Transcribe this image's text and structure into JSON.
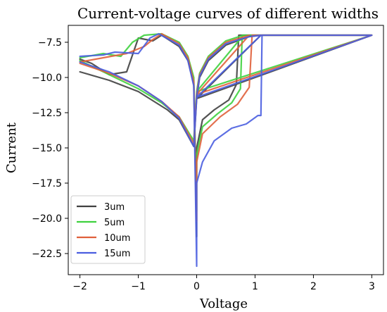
{
  "chart_data": {
    "type": "line",
    "title": "Current-voltage curves of different widths",
    "xlabel": "Voltage",
    "ylabel": "Current",
    "xlim": [
      -2.2,
      3.2
    ],
    "ylim": [
      -24.0,
      -6.3
    ],
    "xticks": [
      -2,
      -1,
      0,
      1,
      2,
      3
    ],
    "xtick_labels": [
      "−2",
      "−1",
      "0",
      "1",
      "2",
      "3"
    ],
    "yticks": [
      -22.5,
      -20.0,
      -17.5,
      -15.0,
      -12.5,
      -10.0,
      -7.5
    ],
    "ytick_labels": [
      "−22.5",
      "−20.0",
      "−17.5",
      "−15.0",
      "−12.5",
      "−10.0",
      "−7.5"
    ],
    "grid": false,
    "legend_position": "lower-left",
    "series": [
      {
        "name": "3um",
        "color": "#404040",
        "points": [
          [
            -2.0,
            -8.7
          ],
          [
            -1.8,
            -9.0
          ],
          [
            -1.5,
            -9.8
          ],
          [
            -1.2,
            -9.6
          ],
          [
            -1.0,
            -7.2
          ],
          [
            -0.75,
            -7.4
          ],
          [
            -0.6,
            -7.0
          ],
          [
            -0.3,
            -7.8
          ],
          [
            -0.15,
            -8.8
          ],
          [
            -0.05,
            -10.5
          ],
          [
            0.0,
            -21.3
          ],
          [
            0.0,
            -15.0
          ],
          [
            0.1,
            -13.0
          ],
          [
            0.3,
            -12.3
          ],
          [
            0.55,
            -11.6
          ],
          [
            0.68,
            -10.5
          ],
          [
            0.72,
            -7.0
          ],
          [
            1.0,
            -7.0
          ],
          [
            2.0,
            -7.0
          ],
          [
            3.0,
            -7.0
          ],
          [
            0.0,
            -11.5
          ],
          [
            0.05,
            -10.0
          ],
          [
            0.2,
            -8.8
          ],
          [
            0.5,
            -7.7
          ],
          [
            0.9,
            -7.1
          ],
          [
            1.1,
            -7.0
          ],
          [
            0.0,
            -11.5
          ],
          [
            -0.05,
            -14.9
          ],
          [
            -0.3,
            -13.0
          ],
          [
            -0.5,
            -12.3
          ],
          [
            -1.0,
            -11.0
          ],
          [
            -1.5,
            -10.2
          ],
          [
            -2.0,
            -9.6
          ]
        ]
      },
      {
        "name": "5um",
        "color": "#3fd13f",
        "points": [
          [
            -2.0,
            -8.6
          ],
          [
            -1.6,
            -8.3
          ],
          [
            -1.3,
            -8.5
          ],
          [
            -1.1,
            -7.5
          ],
          [
            -0.9,
            -7.0
          ],
          [
            -0.6,
            -6.9
          ],
          [
            -0.3,
            -7.5
          ],
          [
            -0.15,
            -8.5
          ],
          [
            -0.05,
            -10.0
          ],
          [
            0.0,
            -19.5
          ],
          [
            0.0,
            -15.5
          ],
          [
            0.1,
            -13.5
          ],
          [
            0.35,
            -12.6
          ],
          [
            0.6,
            -11.8
          ],
          [
            0.75,
            -10.8
          ],
          [
            0.78,
            -7.0
          ],
          [
            1.0,
            -7.0
          ],
          [
            2.0,
            -7.0
          ],
          [
            3.0,
            -7.0
          ],
          [
            0.0,
            -11.0
          ],
          [
            0.05,
            -9.7
          ],
          [
            0.2,
            -8.5
          ],
          [
            0.5,
            -7.4
          ],
          [
            0.8,
            -7.0
          ],
          [
            0.0,
            -11.0
          ],
          [
            -0.05,
            -14.5
          ],
          [
            -0.3,
            -12.8
          ],
          [
            -0.6,
            -11.8
          ],
          [
            -1.0,
            -10.8
          ],
          [
            -1.5,
            -9.8
          ],
          [
            -2.0,
            -8.8
          ]
        ]
      },
      {
        "name": "10um",
        "color": "#e0603b",
        "points": [
          [
            -2.0,
            -8.9
          ],
          [
            -1.6,
            -8.6
          ],
          [
            -1.2,
            -8.3
          ],
          [
            -0.9,
            -7.8
          ],
          [
            -0.75,
            -7.3
          ],
          [
            -0.6,
            -6.9
          ],
          [
            -0.3,
            -7.6
          ],
          [
            -0.15,
            -8.6
          ],
          [
            -0.05,
            -10.3
          ],
          [
            0.0,
            -20.2
          ],
          [
            0.0,
            -16.0
          ],
          [
            0.1,
            -14.0
          ],
          [
            0.4,
            -12.8
          ],
          [
            0.7,
            -11.9
          ],
          [
            0.9,
            -10.7
          ],
          [
            0.95,
            -7.0
          ],
          [
            1.1,
            -7.0
          ],
          [
            2.0,
            -7.0
          ],
          [
            3.0,
            -7.0
          ],
          [
            0.0,
            -11.2
          ],
          [
            0.05,
            -9.8
          ],
          [
            0.2,
            -8.6
          ],
          [
            0.5,
            -7.5
          ],
          [
            0.9,
            -7.0
          ],
          [
            0.0,
            -11.2
          ],
          [
            -0.05,
            -14.7
          ],
          [
            -0.3,
            -12.8
          ],
          [
            -0.6,
            -11.7
          ],
          [
            -1.0,
            -10.6
          ],
          [
            -1.5,
            -9.7
          ],
          [
            -2.0,
            -9.0
          ]
        ]
      },
      {
        "name": "15um",
        "color": "#4a5ee0",
        "points": [
          [
            -2.0,
            -8.5
          ],
          [
            -1.6,
            -8.4
          ],
          [
            -1.4,
            -8.2
          ],
          [
            -1.0,
            -8.3
          ],
          [
            -0.8,
            -7.2
          ],
          [
            -0.65,
            -6.9
          ],
          [
            -0.3,
            -7.7
          ],
          [
            -0.15,
            -8.8
          ],
          [
            -0.05,
            -10.6
          ],
          [
            0.0,
            -23.4
          ],
          [
            0.0,
            -17.5
          ],
          [
            0.1,
            -16.0
          ],
          [
            0.3,
            -14.5
          ],
          [
            0.6,
            -13.6
          ],
          [
            0.85,
            -13.3
          ],
          [
            1.05,
            -12.7
          ],
          [
            1.1,
            -12.7
          ],
          [
            1.12,
            -7.0
          ],
          [
            1.5,
            -7.0
          ],
          [
            2.0,
            -7.0
          ],
          [
            3.0,
            -7.0
          ],
          [
            0.0,
            -11.4
          ],
          [
            0.05,
            -9.9
          ],
          [
            0.2,
            -8.7
          ],
          [
            0.5,
            -7.6
          ],
          [
            0.9,
            -7.1
          ],
          [
            1.1,
            -7.0
          ],
          [
            0.0,
            -11.4
          ],
          [
            -0.05,
            -14.9
          ],
          [
            -0.3,
            -12.9
          ],
          [
            -0.6,
            -11.7
          ],
          [
            -1.0,
            -10.6
          ],
          [
            -1.5,
            -9.6
          ],
          [
            -2.0,
            -8.9
          ]
        ]
      }
    ]
  }
}
